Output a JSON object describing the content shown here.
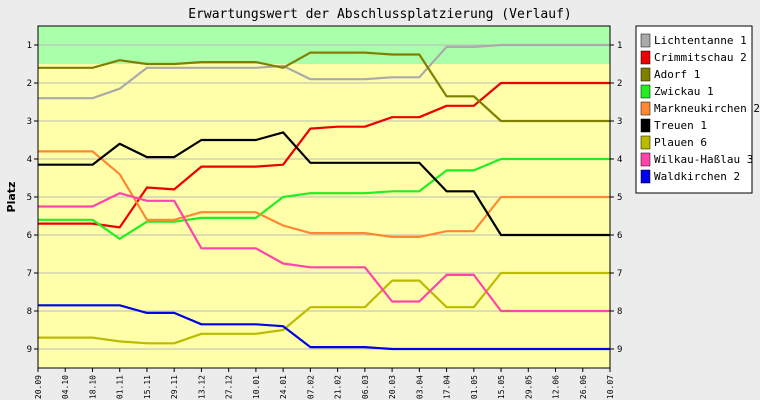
{
  "chart_data": {
    "type": "line",
    "title": "Erwartungswert der Abschlussplatzierung (Verlauf)",
    "ylabel": "Platz",
    "xlabel": "",
    "ylim": [
      0.5,
      9.5
    ],
    "y_inverted": true,
    "yticks": [
      "1",
      "2",
      "3",
      "4",
      "5",
      "6",
      "7",
      "8",
      "9"
    ],
    "grid": "horizontal",
    "legend_position": "right",
    "bands": [
      {
        "from": 0.5,
        "to": 1.5,
        "color": "#aaffaa"
      },
      {
        "from": 1.5,
        "to": 9.5,
        "color": "#ffffaa"
      }
    ],
    "x": [
      "20.09",
      "04.10",
      "18.10",
      "01.11",
      "15.11",
      "29.11",
      "13.12",
      "27.12",
      "10.01",
      "24.01",
      "07.02",
      "21.02",
      "06.03",
      "20.03",
      "03.04",
      "17.04",
      "01.05",
      "15.05",
      "29.05",
      "12.06",
      "26.06",
      "10.07"
    ],
    "series": [
      {
        "name": "Lichtentanne 1",
        "color": "#aaaaaa",
        "values": [
          2.4,
          2.4,
          2.4,
          2.15,
          1.6,
          1.6,
          1.6,
          1.6,
          1.6,
          1.55,
          1.9,
          1.9,
          1.9,
          1.85,
          1.85,
          1.05,
          1.05,
          1.0,
          1.0,
          1.0,
          1.0,
          1.0
        ]
      },
      {
        "name": "Crimmitschau 2",
        "color": "#ee0000",
        "values": [
          5.7,
          5.7,
          5.7,
          5.8,
          4.75,
          4.8,
          4.2,
          4.2,
          4.2,
          4.15,
          3.2,
          3.15,
          3.15,
          2.9,
          2.9,
          2.6,
          2.6,
          2.0,
          2.0,
          2.0,
          2.0,
          2.0
        ]
      },
      {
        "name": "Adorf 1",
        "color": "#808000",
        "values": [
          1.6,
          1.6,
          1.6,
          1.4,
          1.5,
          1.5,
          1.45,
          1.45,
          1.45,
          1.6,
          1.2,
          1.2,
          1.2,
          1.25,
          1.25,
          2.35,
          2.35,
          3.0,
          3.0,
          3.0,
          3.0,
          3.0
        ]
      },
      {
        "name": "Zwickau 1",
        "color": "#22ee22",
        "values": [
          5.6,
          5.6,
          5.6,
          6.1,
          5.65,
          5.65,
          5.55,
          5.55,
          5.55,
          5.0,
          4.9,
          4.9,
          4.9,
          4.85,
          4.85,
          4.3,
          4.3,
          4.0,
          4.0,
          4.0,
          4.0,
          4.0
        ]
      },
      {
        "name": "Markneukirchen 2",
        "color": "#ff8833",
        "values": [
          3.8,
          3.8,
          3.8,
          4.4,
          5.6,
          5.6,
          5.4,
          5.4,
          5.4,
          5.75,
          5.95,
          5.95,
          5.95,
          6.05,
          6.05,
          5.9,
          5.9,
          5.0,
          5.0,
          5.0,
          5.0,
          5.0
        ]
      },
      {
        "name": "Treuen 1",
        "color": "#000000",
        "values": [
          4.15,
          4.15,
          4.15,
          3.6,
          3.95,
          3.95,
          3.5,
          3.5,
          3.5,
          3.3,
          4.1,
          4.1,
          4.1,
          4.1,
          4.1,
          4.85,
          4.85,
          6.0,
          6.0,
          6.0,
          6.0,
          6.0
        ]
      },
      {
        "name": "Plauen 6",
        "color": "#bbbb00",
        "values": [
          8.7,
          8.7,
          8.7,
          8.8,
          8.85,
          8.85,
          8.6,
          8.6,
          8.6,
          8.5,
          7.9,
          7.9,
          7.9,
          7.2,
          7.2,
          7.9,
          7.9,
          7.0,
          7.0,
          7.0,
          7.0,
          7.0
        ]
      },
      {
        "name": "Wilkau-Haßlau 3",
        "color": "#ff44aa",
        "values": [
          5.25,
          5.25,
          5.25,
          4.9,
          5.1,
          5.1,
          6.35,
          6.35,
          6.35,
          6.75,
          6.85,
          6.85,
          6.85,
          7.75,
          7.75,
          7.05,
          7.05,
          8.0,
          8.0,
          8.0,
          8.0,
          8.0
        ]
      },
      {
        "name": "Waldkirchen 2",
        "color": "#0000ee",
        "values": [
          7.85,
          7.85,
          7.85,
          7.85,
          8.05,
          8.05,
          8.35,
          8.35,
          8.35,
          8.4,
          8.95,
          8.95,
          8.95,
          9.0,
          9.0,
          9.0,
          9.0,
          9.0,
          9.0,
          9.0,
          9.0,
          9.0
        ]
      }
    ]
  }
}
